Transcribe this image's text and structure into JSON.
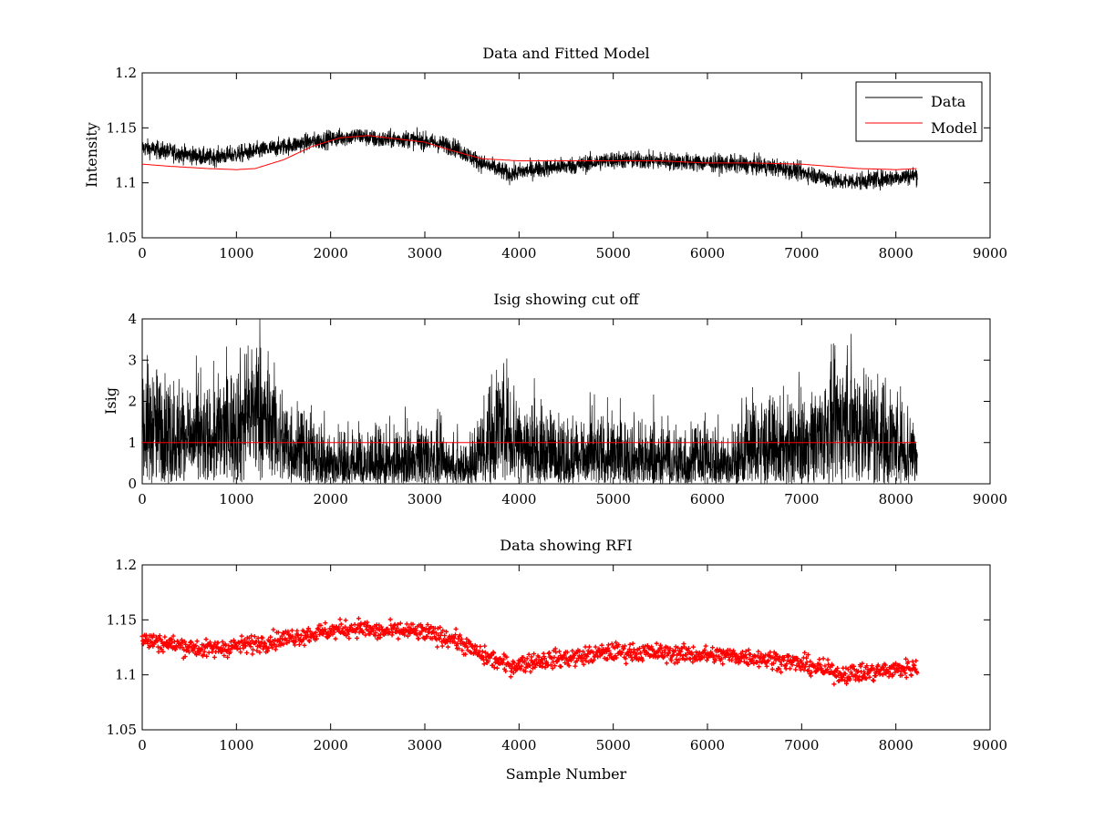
{
  "chart_data": [
    {
      "type": "line",
      "title": "Data and Fitted Model",
      "xlabel": "",
      "ylabel": "Intensity",
      "xlim": [
        0,
        9000
      ],
      "ylim": [
        1.05,
        1.2
      ],
      "xticks": [
        "0",
        "1000",
        "2000",
        "3000",
        "4000",
        "5000",
        "6000",
        "7000",
        "8000",
        "9000"
      ],
      "yticks": [
        "1.05",
        "1.1",
        "1.15",
        "1.2"
      ],
      "grid": false,
      "legend_position": "top-right",
      "series": [
        {
          "name": "Data",
          "color": "#000000",
          "style": "noisy-line",
          "noise": 0.004,
          "x": [
            0,
            300,
            700,
            1000,
            1300,
            1700,
            2000,
            2300,
            2500,
            2800,
            3000,
            3300,
            3600,
            3900,
            4200,
            4600,
            5000,
            5500,
            6000,
            6300,
            6500,
            6800,
            7100,
            7400,
            7700,
            8000,
            8230
          ],
          "y": [
            1.132,
            1.128,
            1.123,
            1.126,
            1.13,
            1.136,
            1.14,
            1.143,
            1.139,
            1.14,
            1.138,
            1.133,
            1.118,
            1.108,
            1.113,
            1.116,
            1.121,
            1.12,
            1.118,
            1.117,
            1.116,
            1.113,
            1.108,
            1.101,
            1.102,
            1.105,
            1.107
          ]
        },
        {
          "name": "Model",
          "color": "#ff0000",
          "style": "line",
          "x": [
            0,
            300,
            700,
            1000,
            1200,
            1500,
            1800,
            2100,
            2400,
            2700,
            3000,
            3300,
            3600,
            4000,
            4500,
            5000,
            5500,
            6000,
            6500,
            7000,
            7300,
            7600,
            8000,
            8230
          ],
          "y": [
            1.117,
            1.115,
            1.113,
            1.112,
            1.113,
            1.121,
            1.133,
            1.141,
            1.143,
            1.14,
            1.137,
            1.129,
            1.122,
            1.12,
            1.12,
            1.12,
            1.12,
            1.118,
            1.118,
            1.117,
            1.115,
            1.113,
            1.112,
            1.113
          ]
        }
      ]
    },
    {
      "type": "line",
      "title": "Isig showing cut off",
      "xlabel": "",
      "ylabel": "Isig",
      "xlim": [
        0,
        9000
      ],
      "ylim": [
        0,
        4
      ],
      "xticks": [
        "0",
        "1000",
        "2000",
        "3000",
        "4000",
        "5000",
        "6000",
        "7000",
        "8000",
        "9000"
      ],
      "yticks": [
        "0",
        "1",
        "2",
        "3",
        "4"
      ],
      "grid": false,
      "series": [
        {
          "color": "#000000",
          "style": "spiky-line",
          "x": [
            0,
            300,
            700,
            1000,
            1200,
            1500,
            1800,
            2100,
            2400,
            2700,
            3000,
            3300,
            3500,
            3800,
            4100,
            4500,
            5000,
            5500,
            6000,
            6300,
            6400,
            6800,
            7100,
            7500,
            7800,
            8000,
            8230
          ],
          "y": [
            1.4,
            1.2,
            1.0,
            1.4,
            1.8,
            1.0,
            0.6,
            0.4,
            0.4,
            0.4,
            0.6,
            0.3,
            0.4,
            1.5,
            0.8,
            0.6,
            0.6,
            0.5,
            0.5,
            0.4,
            0.9,
            0.8,
            1.0,
            1.6,
            1.2,
            1.0,
            0.7
          ]
        },
        {
          "color": "#ff0000",
          "style": "line",
          "x": [
            0,
            8230
          ],
          "y": [
            1,
            1
          ]
        }
      ]
    },
    {
      "type": "scatter",
      "title": "Data showing RFI",
      "xlabel": "Sample Number",
      "ylabel": "",
      "xlim": [
        0,
        9000
      ],
      "ylim": [
        1.05,
        1.2
      ],
      "xticks": [
        "0",
        "1000",
        "2000",
        "3000",
        "4000",
        "5000",
        "6000",
        "7000",
        "8000",
        "9000"
      ],
      "yticks": [
        "1.05",
        "1.1",
        "1.15",
        "1.2"
      ],
      "grid": false,
      "series": [
        {
          "color": "#ff0000",
          "style": "dense-markers",
          "noise": 0.004,
          "x": [
            0,
            300,
            700,
            1000,
            1300,
            1700,
            2000,
            2300,
            2500,
            2800,
            3000,
            3300,
            3600,
            3900,
            4200,
            4600,
            5000,
            5500,
            6000,
            6300,
            6500,
            6800,
            7100,
            7400,
            7700,
            8000,
            8230
          ],
          "y": [
            1.132,
            1.128,
            1.123,
            1.126,
            1.13,
            1.136,
            1.14,
            1.143,
            1.139,
            1.14,
            1.138,
            1.133,
            1.118,
            1.108,
            1.113,
            1.116,
            1.121,
            1.12,
            1.118,
            1.117,
            1.116,
            1.113,
            1.108,
            1.101,
            1.102,
            1.105,
            1.107
          ]
        }
      ]
    }
  ]
}
